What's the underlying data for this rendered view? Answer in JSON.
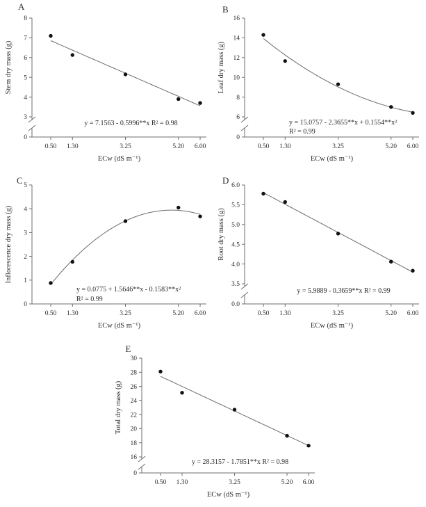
{
  "page": {
    "background": "#ffffff",
    "text_color": "#2b2b2b",
    "axis_color": "#6e6e6e",
    "fit_line_color": "#6b6b6b",
    "marker_color": "#111111"
  },
  "chart_data": [
    {
      "panel": "A",
      "type": "scatter",
      "xlabel": "ECw (dS m⁻¹)",
      "ylabel": "Stem dry mass (g)",
      "x": [
        0.5,
        1.3,
        3.25,
        5.2,
        6.0
      ],
      "y": [
        7.1,
        6.13,
        5.15,
        3.9,
        3.7
      ],
      "x_tick_labels": [
        "0.50",
        "1.30",
        "3.25",
        "5.20",
        "6.00"
      ],
      "y_tick_values": [
        3,
        4,
        5,
        6,
        7,
        8
      ],
      "y_tick_labels": [
        "3",
        "4",
        "5",
        "6",
        "7",
        "8"
      ],
      "origin_label": "0",
      "axis_break": true,
      "xlim": [
        0.5,
        6.0
      ],
      "ylim": [
        3,
        8
      ],
      "grid": false,
      "fit": {
        "kind": "linear",
        "coefficients": [
          7.1563,
          -0.5996
        ],
        "r_squared": 0.98
      },
      "equation_lines": [
        "y = 7.1563 - 0.5996**x R² = 0.98"
      ]
    },
    {
      "panel": "B",
      "type": "scatter",
      "xlabel": "ECw (dS m⁻¹)",
      "ylabel": "Leaf dry mass (g)",
      "x": [
        0.5,
        1.3,
        3.25,
        5.2,
        6.0
      ],
      "y": [
        14.3,
        11.65,
        9.3,
        7.0,
        6.4
      ],
      "x_tick_labels": [
        "0.50",
        "1.30",
        "3.25",
        "5.20",
        "6.00"
      ],
      "y_tick_values": [
        6,
        8,
        10,
        12,
        14,
        16
      ],
      "y_tick_labels": [
        "6",
        "8",
        "10",
        "12",
        "14",
        "16"
      ],
      "origin_label": "0",
      "axis_break": true,
      "xlim": [
        0.5,
        6.0
      ],
      "ylim": [
        6,
        16
      ],
      "grid": false,
      "fit": {
        "kind": "quadratic",
        "coefficients": [
          15.0757,
          -2.3655,
          0.1554
        ],
        "r_squared": 0.99
      },
      "equation_lines": [
        "y = 15.0757 - 2.3655**x + 0.1554**x²",
        "R² = 0.99"
      ]
    },
    {
      "panel": "C",
      "type": "scatter",
      "xlabel": "ECw (dS m⁻¹)",
      "ylabel": "Inflorescence dry mass (g)",
      "x": [
        0.5,
        1.3,
        3.25,
        5.2,
        6.0
      ],
      "y": [
        0.88,
        1.77,
        3.48,
        4.05,
        3.68
      ],
      "x_tick_labels": [
        "0.50",
        "1.30",
        "3.25",
        "5.20",
        "6.00"
      ],
      "y_tick_values": [
        0,
        1,
        2,
        3,
        4,
        5
      ],
      "y_tick_labels": [
        "0",
        "1",
        "2",
        "3",
        "4",
        "5"
      ],
      "origin_label": null,
      "axis_break": false,
      "xlim": [
        0.5,
        6.0
      ],
      "ylim": [
        0,
        5
      ],
      "grid": false,
      "fit": {
        "kind": "quadratic",
        "coefficients": [
          0.0775,
          1.5646,
          -0.1583
        ],
        "r_squared": 0.99
      },
      "equation_lines": [
        "y = 0.0775 + 1.5646**x - 0.1583**x²",
        "R² = 0.99"
      ]
    },
    {
      "panel": "D",
      "type": "scatter",
      "xlabel": "ECw (dS m⁻¹)",
      "ylabel": "Root dry mass (g)",
      "x": [
        0.5,
        1.3,
        3.25,
        5.2,
        6.0
      ],
      "y": [
        5.78,
        5.57,
        4.77,
        4.06,
        3.83
      ],
      "x_tick_labels": [
        "0.50",
        "1.30",
        "3.25",
        "5.20",
        "6.00"
      ],
      "y_tick_values": [
        3.5,
        4.0,
        4.5,
        5.0,
        5.5,
        6.0
      ],
      "y_tick_labels": [
        "3.5",
        "4.0",
        "4.5",
        "5.0",
        "5.5",
        "6.0"
      ],
      "origin_label": "0.0",
      "axis_break": true,
      "xlim": [
        0.5,
        6.0
      ],
      "ylim": [
        3.5,
        6.0
      ],
      "grid": false,
      "fit": {
        "kind": "linear",
        "coefficients": [
          5.9889,
          -0.3659
        ],
        "r_squared": 0.99
      },
      "equation_lines": [
        "y = 5.9889 - 0.3659**x R² = 0.99"
      ]
    },
    {
      "panel": "E",
      "type": "scatter",
      "xlabel": "ECw (dS m⁻¹)",
      "ylabel": "Total dry mass (g)",
      "x": [
        0.5,
        1.3,
        3.25,
        5.2,
        6.0
      ],
      "y": [
        28.1,
        25.1,
        22.7,
        19.0,
        17.6
      ],
      "x_tick_labels": [
        "0.50",
        "1.30",
        "3.25",
        "5.20",
        "6.00"
      ],
      "y_tick_values": [
        16,
        18,
        20,
        22,
        24,
        26,
        28,
        30
      ],
      "y_tick_labels": [
        "16",
        "18",
        "20",
        "22",
        "24",
        "26",
        "28",
        "30"
      ],
      "origin_label": "0",
      "axis_break": true,
      "xlim": [
        0.5,
        6.0
      ],
      "ylim": [
        16,
        30
      ],
      "grid": false,
      "fit": {
        "kind": "linear",
        "coefficients": [
          28.3157,
          -1.7851
        ],
        "r_squared": 0.98
      },
      "equation_lines": [
        "y = 28.3157 - 1.7851**x R² = 0.98"
      ]
    }
  ]
}
